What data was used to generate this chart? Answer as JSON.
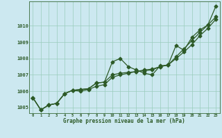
{
  "xlabel": "Graphe pression niveau de la mer (hPa)",
  "background_color": "#cce8f0",
  "grid_color": "#99ccbb",
  "line_color": "#2d5a27",
  "x": [
    0,
    1,
    2,
    3,
    4,
    5,
    6,
    7,
    8,
    9,
    10,
    11,
    12,
    13,
    14,
    15,
    16,
    17,
    18,
    19,
    20,
    21,
    22,
    23
  ],
  "line1": [
    1005.6,
    1004.85,
    1005.15,
    1005.25,
    1005.85,
    1006.05,
    1006.1,
    1006.15,
    1006.5,
    1006.55,
    1007.8,
    1008.0,
    1007.5,
    1007.3,
    1007.1,
    1007.0,
    1007.55,
    1007.6,
    1008.8,
    1008.5,
    1009.3,
    1009.75,
    1010.05,
    1011.2
  ],
  "line2": [
    1005.6,
    1004.85,
    1005.15,
    1005.25,
    1005.85,
    1006.05,
    1006.1,
    1006.15,
    1006.5,
    1006.55,
    1007.0,
    1007.1,
    1007.15,
    1007.2,
    1007.25,
    1007.3,
    1007.5,
    1007.6,
    1008.1,
    1008.6,
    1009.1,
    1009.6,
    1010.05,
    1010.55
  ],
  "line3": [
    1005.6,
    1004.85,
    1005.15,
    1005.25,
    1005.85,
    1006.05,
    1006.0,
    1006.1,
    1006.3,
    1006.4,
    1006.85,
    1007.0,
    1007.1,
    1007.2,
    1007.3,
    1007.35,
    1007.5,
    1007.6,
    1008.0,
    1008.4,
    1008.85,
    1009.4,
    1009.85,
    1010.4
  ],
  "ylim": [
    1004.65,
    1011.5
  ],
  "yticks": [
    1005,
    1006,
    1007,
    1008,
    1009,
    1010
  ],
  "xticks": [
    0,
    1,
    2,
    3,
    4,
    5,
    6,
    7,
    8,
    9,
    10,
    11,
    12,
    13,
    14,
    15,
    16,
    17,
    18,
    19,
    20,
    21,
    22,
    23
  ]
}
